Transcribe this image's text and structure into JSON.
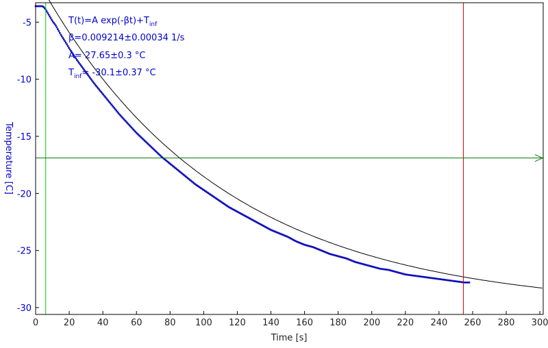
{
  "chart_data": {
    "type": "scatter",
    "title": "",
    "xlabel": "Time [s]",
    "ylabel": "Temperature [C]",
    "xlim": [
      0,
      302
    ],
    "ylim": [
      -30.6,
      -3.3
    ],
    "x_ticks": [
      0,
      20,
      40,
      60,
      80,
      100,
      120,
      140,
      160,
      180,
      200,
      220,
      240,
      260,
      280,
      300
    ],
    "y_ticks": [
      -5,
      -10,
      -15,
      -20,
      -25,
      -30
    ],
    "grid": false,
    "legend": "none",
    "annotation": {
      "line1_main": "T(t)=A exp(-βt)+T",
      "line1_sub": "inf",
      "line2": "β=0.009214±0.00034 1/s",
      "line3": "A= 27.65±0.3 °C",
      "line4_main": "T",
      "line4_sub": "inf",
      "line4_rest": "= -30.1±0.37 °C"
    },
    "fit_model": {
      "A": 27.65,
      "beta": 0.009214,
      "T_inf": -30.1,
      "t0": 5.5,
      "x_range": [
        5.5,
        302
      ]
    },
    "series": [
      {
        "role": "measured",
        "x": [
          0,
          2,
          4,
          5,
          6,
          8,
          10,
          12,
          15,
          18,
          20,
          25,
          30,
          35,
          40,
          45,
          50,
          55,
          60,
          65,
          70,
          75,
          80,
          85,
          90,
          95,
          100,
          105,
          110,
          115,
          120,
          125,
          130,
          135,
          140,
          145,
          150,
          155,
          160,
          165,
          170,
          175,
          180,
          185,
          190,
          195,
          200,
          205,
          210,
          215,
          220,
          225,
          230,
          235,
          240,
          245,
          250,
          255,
          258
        ],
        "y": [
          -3.6,
          -3.6,
          -3.6,
          -3.7,
          -3.9,
          -4.4,
          -4.9,
          -5.3,
          -6.1,
          -6.8,
          -7.3,
          -8.4,
          -9.4,
          -10.4,
          -11.3,
          -12.2,
          -13.1,
          -13.9,
          -14.7,
          -15.4,
          -16.1,
          -16.8,
          -17.4,
          -18.0,
          -18.6,
          -19.2,
          -19.7,
          -20.2,
          -20.7,
          -21.2,
          -21.6,
          -22.0,
          -22.4,
          -22.8,
          -23.2,
          -23.5,
          -23.8,
          -24.2,
          -24.5,
          -24.7,
          -25.0,
          -25.3,
          -25.5,
          -25.7,
          -26.0,
          -26.2,
          -26.4,
          -26.6,
          -26.7,
          -26.9,
          -27.1,
          -27.2,
          -27.3,
          -27.4,
          -27.5,
          -27.6,
          -27.7,
          -27.8,
          -27.8
        ]
      }
    ],
    "markers": {
      "vertical_green_x": 6,
      "vertical_red_x": 254.5,
      "horizontal_green_y": -16.9
    },
    "colors": {
      "axis_text": "#0000cc",
      "data": "#1010bb",
      "fit": "#000000",
      "green": "#00cc00",
      "dark_green": "#007700",
      "red": "#dd0000",
      "frame": "#000000"
    }
  }
}
